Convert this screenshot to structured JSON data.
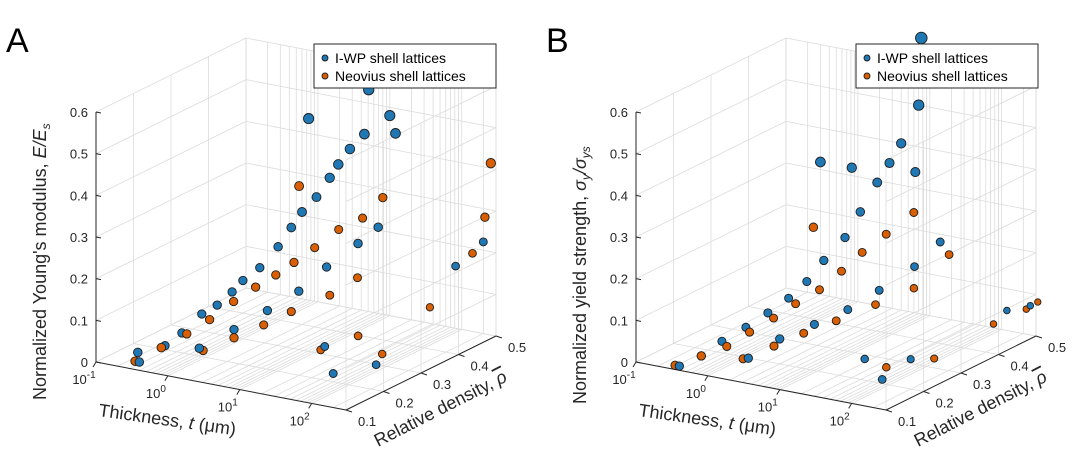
{
  "colors": {
    "iwp": "#1f77b4",
    "neovius": "#d95f02"
  },
  "chart_data": [
    {
      "type": "scatter",
      "panel_label": "A",
      "zlabel_text": "Normalized Young's modulus, ",
      "zlabel_symbol": "E/E",
      "zlabel_sub": "s",
      "xlabel_text": "Thickness, ",
      "xlabel_symbol": "t",
      "xlabel_unit": " (μm)",
      "ylabel_text": "Relative density, ",
      "ylabel_symbol": "ρ",
      "xscale": "log",
      "xlim": [
        0.1,
        300
      ],
      "ylim": [
        0.1,
        0.5
      ],
      "zlim": [
        0,
        0.6
      ],
      "x_ticks": [
        {
          "label": "10",
          "exp": "-1"
        },
        {
          "label": "10",
          "exp": "0"
        },
        {
          "label": "10",
          "exp": "1"
        },
        {
          "label": "10",
          "exp": "2"
        }
      ],
      "y_ticks": [
        "0.1",
        "0.2",
        "0.3",
        "0.4",
        "0.5"
      ],
      "z_ticks": [
        "0",
        "0.1",
        "0.2",
        "0.3",
        "0.4",
        "0.5",
        "0.6"
      ],
      "grid": true,
      "legend_position": "top-right",
      "series": [
        {
          "name": "I-WP shell lattices",
          "points": [
            [
              0.4,
              0.1,
              0.02
            ],
            [
              0.5,
              0.15,
              0.04
            ],
            [
              0.6,
              0.18,
              0.06
            ],
            [
              0.7,
              0.22,
              0.09
            ],
            [
              0.8,
              0.25,
              0.1
            ],
            [
              0.9,
              0.28,
              0.12
            ],
            [
              1.0,
              0.3,
              0.14
            ],
            [
              1.2,
              0.33,
              0.16
            ],
            [
              1.5,
              0.36,
              0.2
            ],
            [
              1.8,
              0.38,
              0.24
            ],
            [
              2.0,
              0.4,
              0.27
            ],
            [
              2.5,
              0.42,
              0.3
            ],
            [
              3.0,
              0.44,
              0.34
            ],
            [
              3.5,
              0.45,
              0.37
            ],
            [
              4.0,
              0.47,
              0.4
            ],
            [
              5.0,
              0.49,
              0.43
            ],
            [
              1.2,
              0.46,
              0.46
            ],
            [
              4.0,
              0.52,
              0.52
            ],
            [
              10,
              0.5,
              0.48
            ],
            [
              12,
              0.5,
              0.44
            ],
            [
              1.5,
              0.15,
              0.05
            ],
            [
              2.5,
              0.2,
              0.08
            ],
            [
              4.0,
              0.25,
              0.11
            ],
            [
              6.0,
              0.3,
              0.14
            ],
            [
              8.0,
              0.35,
              0.18
            ],
            [
              12,
              0.4,
              0.22
            ],
            [
              16,
              0.43,
              0.25
            ],
            [
              0.3,
              0.12,
              0.03
            ],
            [
              25,
              0.25,
              0.05
            ],
            [
              60,
              0.2,
              0.02
            ],
            [
              150,
              0.45,
              0.18
            ],
            [
              200,
              0.5,
              0.22
            ],
            [
              130,
              0.25,
              0.03
            ]
          ]
        },
        {
          "name": "Neovius shell lattices",
          "points": [
            [
              0.35,
              0.1,
              0.02
            ],
            [
              0.5,
              0.14,
              0.04
            ],
            [
              0.7,
              0.18,
              0.06
            ],
            [
              0.9,
              0.22,
              0.08
            ],
            [
              1.2,
              0.26,
              0.11
            ],
            [
              1.5,
              0.3,
              0.13
            ],
            [
              2.0,
              0.33,
              0.15
            ],
            [
              2.5,
              0.36,
              0.17
            ],
            [
              3.0,
              0.4,
              0.19
            ],
            [
              4.0,
              0.44,
              0.22
            ],
            [
              6.0,
              0.47,
              0.24
            ],
            [
              8.0,
              0.5,
              0.28
            ],
            [
              1.0,
              0.45,
              0.3
            ],
            [
              1.5,
              0.16,
              0.04
            ],
            [
              2.5,
              0.2,
              0.06
            ],
            [
              4.0,
              0.24,
              0.08
            ],
            [
              6.0,
              0.28,
              0.1
            ],
            [
              10,
              0.34,
              0.12
            ],
            [
              15,
              0.38,
              0.15
            ],
            [
              22,
              0.25,
              0.04
            ],
            [
              40,
              0.3,
              0.06
            ],
            [
              120,
              0.4,
              0.1
            ],
            [
              180,
              0.48,
              0.2
            ],
            [
              210,
              0.5,
              0.28
            ],
            [
              200,
              0.52,
              0.4
            ],
            [
              110,
              0.28,
              0.04
            ]
          ]
        }
      ]
    },
    {
      "type": "scatter",
      "panel_label": "B",
      "zlabel_text": "Normalized yield strength, ",
      "zlabel_symbol": "σ",
      "zlabel_sub": "y",
      "zlabel_mid": "/σ",
      "zlabel_sub2": "ys",
      "xlabel_text": "Thickness, ",
      "xlabel_symbol": "t",
      "xlabel_unit": " (μm)",
      "ylabel_text": "Relative density, ",
      "ylabel_symbol": "ρ",
      "xscale": "log",
      "xlim": [
        0.1,
        300
      ],
      "ylim": [
        0.1,
        0.5
      ],
      "zlim": [
        0,
        0.6
      ],
      "x_ticks": [
        {
          "label": "10",
          "exp": "-1"
        },
        {
          "label": "10",
          "exp": "0"
        },
        {
          "label": "10",
          "exp": "1"
        },
        {
          "label": "10",
          "exp": "2"
        }
      ],
      "y_ticks": [
        "0.1",
        "0.2",
        "0.3",
        "0.4",
        "0.5"
      ],
      "z_ticks": [
        "0",
        "0.1",
        "0.2",
        "0.3",
        "0.4",
        "0.5",
        "0.6"
      ],
      "grid": true,
      "legend_position": "top-right",
      "series": [
        {
          "name": "I-WP shell lattices",
          "points": [
            [
              0.4,
              0.1,
              0.01
            ],
            [
              0.5,
              0.14,
              0.02
            ],
            [
              0.6,
              0.18,
              0.04
            ],
            [
              0.8,
              0.22,
              0.06
            ],
            [
              1.0,
              0.26,
              0.08
            ],
            [
              1.2,
              0.3,
              0.1
            ],
            [
              1.5,
              0.33,
              0.13
            ],
            [
              1.8,
              0.36,
              0.17
            ],
            [
              2.2,
              0.4,
              0.21
            ],
            [
              2.5,
              0.43,
              0.26
            ],
            [
              3.0,
              0.46,
              0.32
            ],
            [
              3.5,
              0.48,
              0.36
            ],
            [
              4.0,
              0.5,
              0.4
            ],
            [
              4.5,
              0.52,
              0.56
            ],
            [
              5.0,
              0.52,
              0.61
            ],
            [
              6.0,
              0.52,
              0.65
            ],
            [
              7.0,
              0.5,
              0.5
            ],
            [
              8.0,
              0.48,
              0.35
            ],
            [
              1.5,
              0.45,
              0.35
            ],
            [
              1.0,
              0.4,
              0.38
            ],
            [
              2.0,
              0.15,
              0.03
            ],
            [
              3.0,
              0.2,
              0.06
            ],
            [
              5.0,
              0.25,
              0.08
            ],
            [
              8.0,
              0.3,
              0.1
            ],
            [
              12,
              0.35,
              0.13
            ],
            [
              16,
              0.42,
              0.16
            ],
            [
              20,
              0.47,
              0.2
            ],
            [
              25,
              0.25,
              0.02
            ],
            [
              80,
              0.2,
              0.01
            ],
            [
              150,
              0.48,
              0.06
            ],
            [
              250,
              0.5,
              0.07
            ],
            [
              60,
              0.3,
              0.01
            ]
          ]
        },
        {
          "name": "Neovius shell lattices",
          "points": [
            [
              0.35,
              0.1,
              0.01
            ],
            [
              0.5,
              0.14,
              0.02
            ],
            [
              0.7,
              0.18,
              0.03
            ],
            [
              0.9,
              0.22,
              0.05
            ],
            [
              1.2,
              0.26,
              0.07
            ],
            [
              1.5,
              0.3,
              0.09
            ],
            [
              2.0,
              0.34,
              0.11
            ],
            [
              2.5,
              0.38,
              0.14
            ],
            [
              3.0,
              0.42,
              0.17
            ],
            [
              4.0,
              0.46,
              0.2
            ],
            [
              6.0,
              0.5,
              0.24
            ],
            [
              0.8,
              0.4,
              0.22
            ],
            [
              1.5,
              0.16,
              0.02
            ],
            [
              2.5,
              0.2,
              0.04
            ],
            [
              4.0,
              0.24,
              0.06
            ],
            [
              7.0,
              0.28,
              0.08
            ],
            [
              12,
              0.34,
              0.1
            ],
            [
              20,
              0.4,
              0.12
            ],
            [
              30,
              0.46,
              0.18
            ],
            [
              50,
              0.25,
              0.01
            ],
            [
              100,
              0.32,
              0.01
            ],
            [
              140,
              0.45,
              0.04
            ],
            [
              220,
              0.5,
              0.06
            ],
            [
              250,
              0.52,
              0.07
            ]
          ]
        }
      ]
    }
  ]
}
